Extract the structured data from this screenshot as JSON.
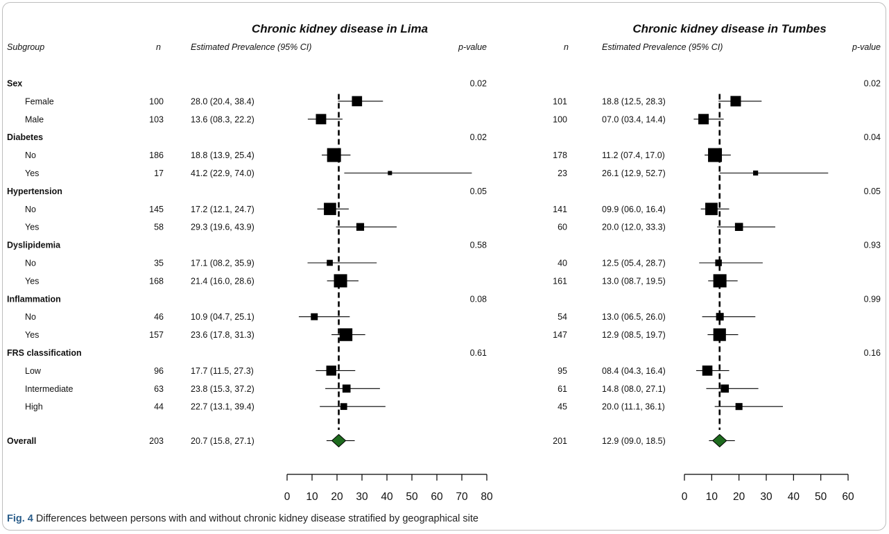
{
  "caption": {
    "label": "Fig. 4",
    "text": "Differences between persons with and without chronic kidney disease stratified by geographical site"
  },
  "colors": {
    "marker": "#000000",
    "overall_diamond": "#1e6b1e",
    "line": "#000000"
  },
  "chart_data": {
    "type": "forest",
    "headers": {
      "subgroup": "Subgroup",
      "n": "n",
      "estimate": "Estimated Prevalence (95% CI)",
      "pvalue": "p-value"
    },
    "panels": [
      {
        "title": "Chronic kidney disease in Lima",
        "reference": 20.7,
        "xlim": [
          0,
          80
        ],
        "xticks": [
          0,
          10,
          20,
          30,
          40,
          50,
          60,
          70,
          80
        ],
        "rows": [
          {
            "kind": "group",
            "label": "Sex",
            "pvalue": "0.02"
          },
          {
            "kind": "item",
            "label": "Female",
            "n": "100",
            "ci_text": "28.0 (20.4, 38.4)",
            "est": 28.0,
            "lo": 20.4,
            "hi": 38.4
          },
          {
            "kind": "item",
            "label": "Male",
            "n": "103",
            "ci_text": "13.6 (08.3, 22.2)",
            "est": 13.6,
            "lo": 8.3,
            "hi": 22.2
          },
          {
            "kind": "group",
            "label": "Diabetes",
            "pvalue": "0.02"
          },
          {
            "kind": "item",
            "label": "No",
            "n": "186",
            "ci_text": "18.8 (13.9, 25.4)",
            "est": 18.8,
            "lo": 13.9,
            "hi": 25.4
          },
          {
            "kind": "item",
            "label": "Yes",
            "n": "17",
            "ci_text": "41.2 (22.9, 74.0)",
            "est": 41.2,
            "lo": 22.9,
            "hi": 74.0
          },
          {
            "kind": "group",
            "label": "Hypertension",
            "pvalue": "0.05"
          },
          {
            "kind": "item",
            "label": "No",
            "n": "145",
            "ci_text": "17.2 (12.1, 24.7)",
            "est": 17.2,
            "lo": 12.1,
            "hi": 24.7
          },
          {
            "kind": "item",
            "label": "Yes",
            "n": "58",
            "ci_text": "29.3 (19.6, 43.9)",
            "est": 29.3,
            "lo": 19.6,
            "hi": 43.9
          },
          {
            "kind": "group",
            "label": "Dyslipidemia",
            "pvalue": "0.58"
          },
          {
            "kind": "item",
            "label": "No",
            "n": "35",
            "ci_text": "17.1 (08.2, 35.9)",
            "est": 17.1,
            "lo": 8.2,
            "hi": 35.9
          },
          {
            "kind": "item",
            "label": "Yes",
            "n": "168",
            "ci_text": "21.4 (16.0, 28.6)",
            "est": 21.4,
            "lo": 16.0,
            "hi": 28.6
          },
          {
            "kind": "group",
            "label": "Inflammation",
            "pvalue": "0.08"
          },
          {
            "kind": "item",
            "label": "No",
            "n": "46",
            "ci_text": "10.9 (04.7, 25.1)",
            "est": 10.9,
            "lo": 4.7,
            "hi": 25.1
          },
          {
            "kind": "item",
            "label": "Yes",
            "n": "157",
            "ci_text": "23.6 (17.8, 31.3)",
            "est": 23.6,
            "lo": 17.8,
            "hi": 31.3
          },
          {
            "kind": "group",
            "label": "FRS classification",
            "pvalue": "0.61"
          },
          {
            "kind": "item",
            "label": "Low",
            "n": "96",
            "ci_text": "17.7 (11.5, 27.3)",
            "est": 17.7,
            "lo": 11.5,
            "hi": 27.3
          },
          {
            "kind": "item",
            "label": "Intermediate",
            "n": "63",
            "ci_text": "23.8 (15.3, 37.2)",
            "est": 23.8,
            "lo": 15.3,
            "hi": 37.2
          },
          {
            "kind": "item",
            "label": "High",
            "n": "44",
            "ci_text": "22.7 (13.1, 39.4)",
            "est": 22.7,
            "lo": 13.1,
            "hi": 39.4
          },
          {
            "kind": "overall",
            "label": "Overall",
            "n": "203",
            "ci_text": "20.7 (15.8, 27.1)",
            "est": 20.7,
            "lo": 15.8,
            "hi": 27.1
          }
        ]
      },
      {
        "title": "Chronic kidney disease in Tumbes",
        "reference": 12.9,
        "xlim": [
          0,
          60
        ],
        "xticks": [
          0,
          10,
          20,
          30,
          40,
          50,
          60
        ],
        "rows": [
          {
            "kind": "group",
            "label": "Sex",
            "pvalue": "0.02"
          },
          {
            "kind": "item",
            "label": "Female",
            "n": "101",
            "ci_text": "18.8 (12.5, 28.3)",
            "est": 18.8,
            "lo": 12.5,
            "hi": 28.3
          },
          {
            "kind": "item",
            "label": "Male",
            "n": "100",
            "ci_text": "07.0 (03.4, 14.4)",
            "est": 7.0,
            "lo": 3.4,
            "hi": 14.4
          },
          {
            "kind": "group",
            "label": "Diabetes",
            "pvalue": "0.04"
          },
          {
            "kind": "item",
            "label": "No",
            "n": "178",
            "ci_text": "11.2 (07.4, 17.0)",
            "est": 11.2,
            "lo": 7.4,
            "hi": 17.0
          },
          {
            "kind": "item",
            "label": "Yes",
            "n": "23",
            "ci_text": "26.1 (12.9, 52.7)",
            "est": 26.1,
            "lo": 12.9,
            "hi": 52.7
          },
          {
            "kind": "group",
            "label": "Hypertension",
            "pvalue": "0.05"
          },
          {
            "kind": "item",
            "label": "No",
            "n": "141",
            "ci_text": "09.9 (06.0, 16.4)",
            "est": 9.9,
            "lo": 6.0,
            "hi": 16.4
          },
          {
            "kind": "item",
            "label": "Yes",
            "n": "60",
            "ci_text": "20.0 (12.0, 33.3)",
            "est": 20.0,
            "lo": 12.0,
            "hi": 33.3
          },
          {
            "kind": "group",
            "label": "Dyslipidemia",
            "pvalue": "0.93"
          },
          {
            "kind": "item",
            "label": "No",
            "n": "40",
            "ci_text": "12.5 (05.4, 28.7)",
            "est": 12.5,
            "lo": 5.4,
            "hi": 28.7
          },
          {
            "kind": "item",
            "label": "Yes",
            "n": "161",
            "ci_text": "13.0 (08.7, 19.5)",
            "est": 13.0,
            "lo": 8.7,
            "hi": 19.5
          },
          {
            "kind": "group",
            "label": "Inflammation",
            "pvalue": "0.99"
          },
          {
            "kind": "item",
            "label": "No",
            "n": "54",
            "ci_text": "13.0 (06.5, 26.0)",
            "est": 13.0,
            "lo": 6.5,
            "hi": 26.0
          },
          {
            "kind": "item",
            "label": "Yes",
            "n": "147",
            "ci_text": "12.9 (08.5, 19.7)",
            "est": 12.9,
            "lo": 8.5,
            "hi": 19.7
          },
          {
            "kind": "group",
            "label": "FRS classification",
            "pvalue": "0.16"
          },
          {
            "kind": "item",
            "label": "Low",
            "n": "95",
            "ci_text": "08.4 (04.3, 16.4)",
            "est": 8.4,
            "lo": 4.3,
            "hi": 16.4
          },
          {
            "kind": "item",
            "label": "Intermediate",
            "n": "61",
            "ci_text": "14.8 (08.0, 27.1)",
            "est": 14.8,
            "lo": 8.0,
            "hi": 27.1
          },
          {
            "kind": "item",
            "label": "High",
            "n": "45",
            "ci_text": "20.0 (11.1, 36.1)",
            "est": 20.0,
            "lo": 11.1,
            "hi": 36.1
          },
          {
            "kind": "overall",
            "label": "Overall",
            "n": "201",
            "ci_text": "12.9 (09.0, 18.5)",
            "est": 12.9,
            "lo": 9.0,
            "hi": 18.5
          }
        ]
      }
    ]
  }
}
